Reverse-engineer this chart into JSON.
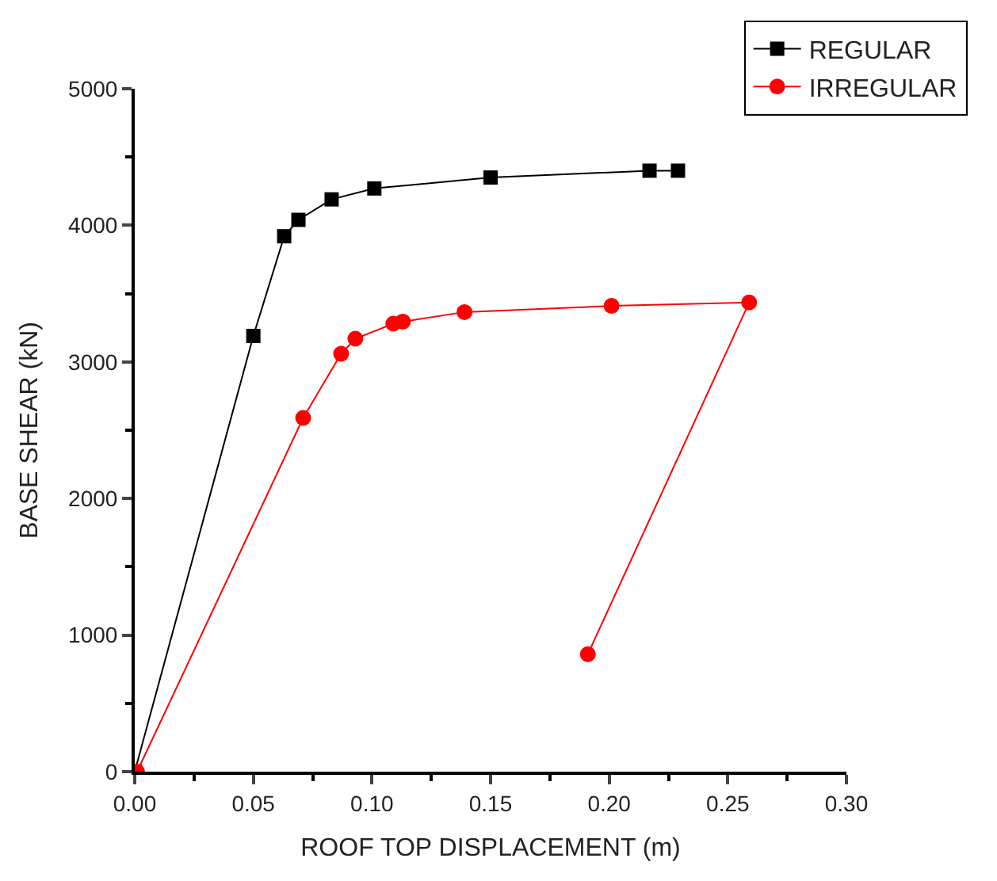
{
  "chart_data": {
    "type": "line",
    "xlabel": "ROOF TOP DISPLACEMENT (m)",
    "ylabel": "BASE SHEAR (kN)",
    "xlim": [
      0,
      0.3
    ],
    "xticks": [
      {
        "value": 0,
        "label": "0.00"
      },
      {
        "value": 0.05,
        "label": "0.05"
      },
      {
        "value": 0.1,
        "label": "0.10"
      },
      {
        "value": 0.15,
        "label": "0.15"
      },
      {
        "value": 0.2,
        "label": "0.20"
      },
      {
        "value": 0.25,
        "label": "0.25"
      },
      {
        "value": 0.3,
        "label": "0.30"
      }
    ],
    "ylim": [
      0,
      5000
    ],
    "yticks": [
      0,
      1000,
      2000,
      3000,
      4000,
      5000
    ],
    "legend": "top right",
    "line_style": "solid",
    "series": [
      {
        "name": "REGULAR",
        "color": "#000000",
        "marker": "square",
        "x": [
          0,
          0.05,
          0.063,
          0.069,
          0.083,
          0.101,
          0.15,
          0.217,
          0.229
        ],
        "values": [
          0,
          3190,
          3920,
          4040,
          4190,
          4270,
          4350,
          4400,
          4400
        ]
      },
      {
        "name": "IRREGULAR",
        "color": "#ff0000",
        "marker": "circle",
        "x": [
          0.001,
          0.071,
          0.087,
          0.093,
          0.109,
          0.113,
          0.139,
          0.201,
          0.259,
          0.191
        ],
        "values": [
          0,
          2590,
          3060,
          3170,
          3280,
          3295,
          3365,
          3410,
          3435,
          860
        ]
      }
    ]
  }
}
